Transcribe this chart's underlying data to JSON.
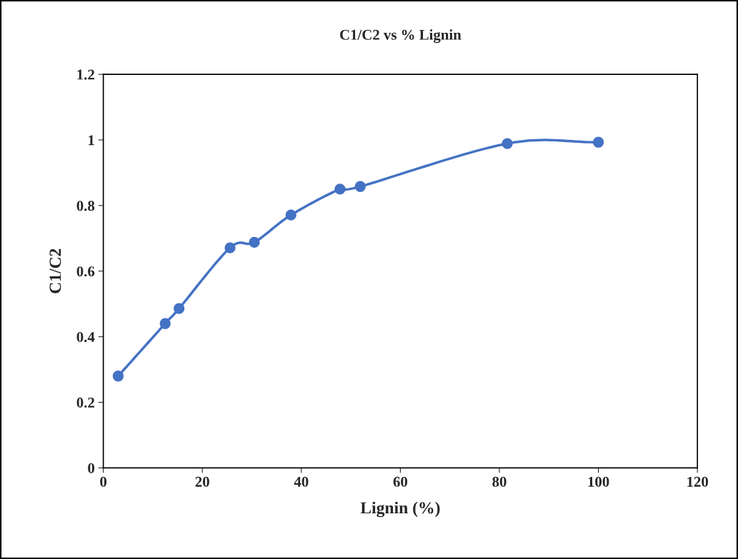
{
  "chart_data": {
    "type": "line",
    "title": "C1/C2 vs % Lignin",
    "xlabel": "Lignin (%)",
    "ylabel": "C1/C2",
    "x": [
      3.0,
      12.5,
      15.3,
      25.6,
      30.5,
      37.9,
      47.8,
      51.9,
      81.6,
      100
    ],
    "series": [
      {
        "color": "#4472c4",
        "values": [
          0.28,
          0.44,
          0.486,
          0.671,
          0.688,
          0.771,
          0.85,
          0.858,
          0.989,
          0.993
        ]
      }
    ],
    "xlim": [
      0,
      120
    ],
    "xticks": [
      0,
      20,
      40,
      60,
      80,
      100,
      120
    ],
    "ylim": [
      0,
      1.2
    ],
    "yticks": [
      0,
      0.2,
      0.4,
      0.6,
      0.8,
      1,
      1.2
    ],
    "grid": false,
    "marker": "circle",
    "line_style": "solid"
  }
}
